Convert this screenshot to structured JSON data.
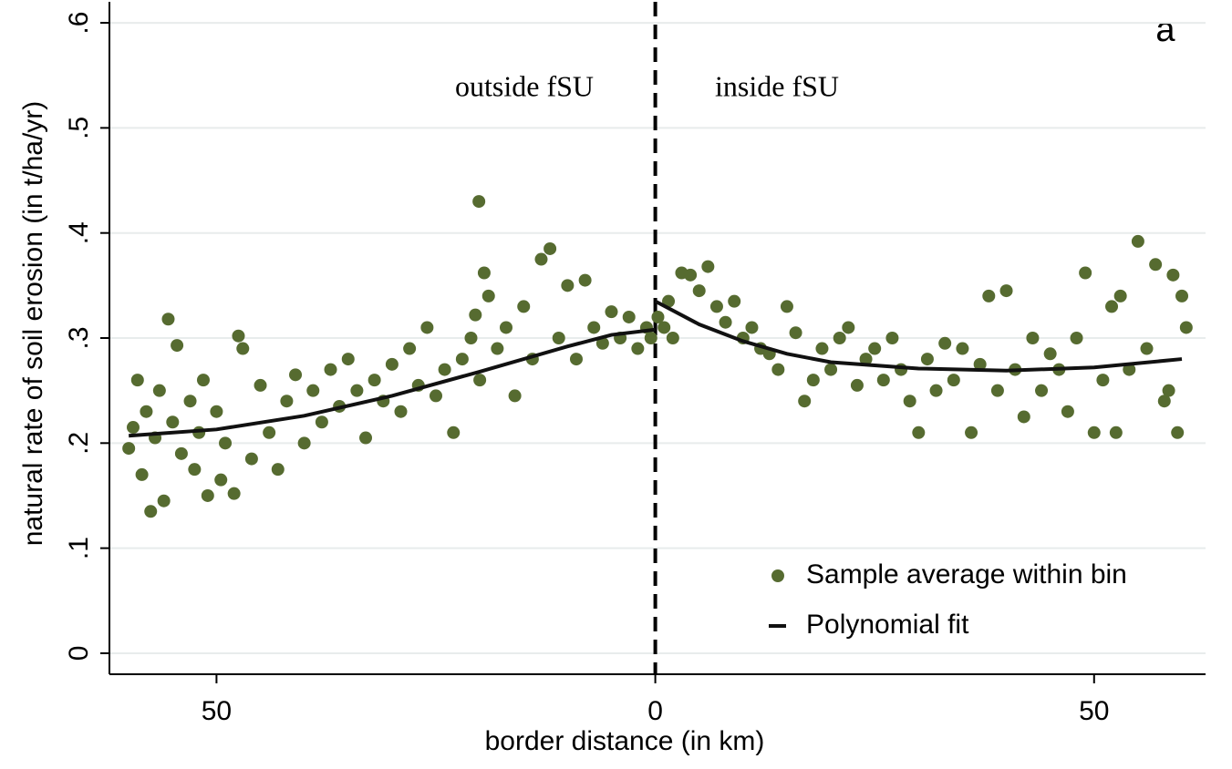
{
  "chart_data": {
    "type": "scatter",
    "ylabel": "natural rate of soil erosion (in t/ha/yr)",
    "xlabel": "border distance (in km)",
    "annotations": [
      "outside fSU",
      "inside fSU",
      "a"
    ],
    "xlim": [
      -62.2,
      62.7
    ],
    "ylim": [
      -0.02,
      0.62
    ],
    "xticks": [
      {
        "value": -50,
        "label": "50"
      },
      0,
      50
    ],
    "yticks": [
      0,
      {
        "value": 0.1,
        "label": ".1"
      },
      {
        "value": 0.2,
        "label": ".2"
      },
      {
        "value": 0.3,
        "label": ".3"
      },
      {
        "value": 0.4,
        "label": ".4"
      },
      {
        "value": 0.5,
        "label": ".5"
      },
      {
        "value": 0.6,
        "label": ".6"
      }
    ],
    "grid": true,
    "vline": 0,
    "legend": "lower right",
    "series": [
      {
        "name": "Sample average within bin",
        "type": "scatter",
        "color": "#566b30",
        "x": [
          -60,
          -59.5,
          -59,
          -58.5,
          -58,
          -57.5,
          -57,
          -56.5,
          -56,
          -55.5,
          -55,
          -54.5,
          -54,
          -53,
          -52.5,
          -52,
          -51.5,
          -51,
          -50,
          -49.5,
          -49,
          -48,
          -47.5,
          -47,
          -46,
          -45,
          -44,
          -43,
          -42,
          -41,
          -40,
          -39,
          -38,
          -37,
          -36,
          -35,
          -34,
          -33,
          -32,
          -31,
          -30,
          -29,
          -28,
          -27,
          -26,
          -25,
          -24,
          -23,
          -22,
          -21,
          -20,
          -20.5,
          -19.5,
          -20.1,
          -19,
          -18,
          -17,
          -16,
          -15,
          -14,
          -13,
          -12,
          -11,
          -10,
          -9,
          -8,
          -7,
          -6,
          -5,
          -4,
          -3,
          -2,
          -1,
          -0.5,
          0.3,
          1,
          1.5,
          2,
          3,
          4,
          5,
          6,
          7,
          8,
          9,
          10,
          11,
          12,
          13,
          14,
          15,
          16,
          17,
          18,
          19,
          20,
          21,
          22,
          23,
          24,
          25,
          26,
          27,
          28,
          29,
          30,
          31,
          32,
          33,
          34,
          35,
          36,
          37,
          38,
          39,
          40,
          41,
          42,
          43,
          44,
          45,
          46,
          47,
          48,
          49,
          50,
          51,
          52,
          52.5,
          53,
          54,
          55,
          56,
          57,
          58,
          59,
          60,
          60.5,
          59.5,
          58.5
        ],
        "values": [
          0.195,
          0.215,
          0.26,
          0.17,
          0.23,
          0.135,
          0.205,
          0.25,
          0.145,
          0.318,
          0.22,
          0.293,
          0.19,
          0.24,
          0.175,
          0.21,
          0.26,
          0.15,
          0.23,
          0.165,
          0.2,
          0.152,
          0.302,
          0.29,
          0.185,
          0.255,
          0.21,
          0.175,
          0.24,
          0.265,
          0.2,
          0.25,
          0.22,
          0.27,
          0.235,
          0.28,
          0.25,
          0.205,
          0.26,
          0.24,
          0.275,
          0.23,
          0.29,
          0.255,
          0.31,
          0.245,
          0.27,
          0.21,
          0.28,
          0.3,
          0.26,
          0.322,
          0.362,
          0.43,
          0.34,
          0.29,
          0.31,
          0.245,
          0.33,
          0.28,
          0.375,
          0.385,
          0.3,
          0.35,
          0.28,
          0.355,
          0.31,
          0.295,
          0.325,
          0.3,
          0.32,
          0.29,
          0.31,
          0.3,
          0.32,
          0.31,
          0.335,
          0.3,
          0.362,
          0.36,
          0.345,
          0.368,
          0.33,
          0.315,
          0.335,
          0.3,
          0.31,
          0.29,
          0.285,
          0.27,
          0.33,
          0.305,
          0.24,
          0.26,
          0.29,
          0.27,
          0.3,
          0.31,
          0.255,
          0.28,
          0.29,
          0.26,
          0.3,
          0.27,
          0.24,
          0.21,
          0.28,
          0.25,
          0.295,
          0.26,
          0.29,
          0.21,
          0.275,
          0.34,
          0.25,
          0.345,
          0.27,
          0.225,
          0.3,
          0.25,
          0.285,
          0.27,
          0.23,
          0.3,
          0.362,
          0.21,
          0.26,
          0.33,
          0.21,
          0.34,
          0.27,
          0.392,
          0.29,
          0.37,
          0.24,
          0.36,
          0.34,
          0.31,
          0.21,
          0.25
        ]
      },
      {
        "name": "Polynomial fit",
        "type": "line",
        "color": "#111111",
        "x": [
          -60,
          -50,
          -40,
          -30,
          -20,
          -10,
          -5,
          0,
          0,
          0,
          5,
          10,
          15,
          20,
          30,
          40,
          50,
          60
        ],
        "values": [
          0.207,
          0.213,
          0.226,
          0.245,
          0.268,
          0.292,
          0.303,
          0.308,
          null,
          0.335,
          0.313,
          0.297,
          0.285,
          0.277,
          0.271,
          0.269,
          0.272,
          0.28
        ]
      }
    ]
  }
}
